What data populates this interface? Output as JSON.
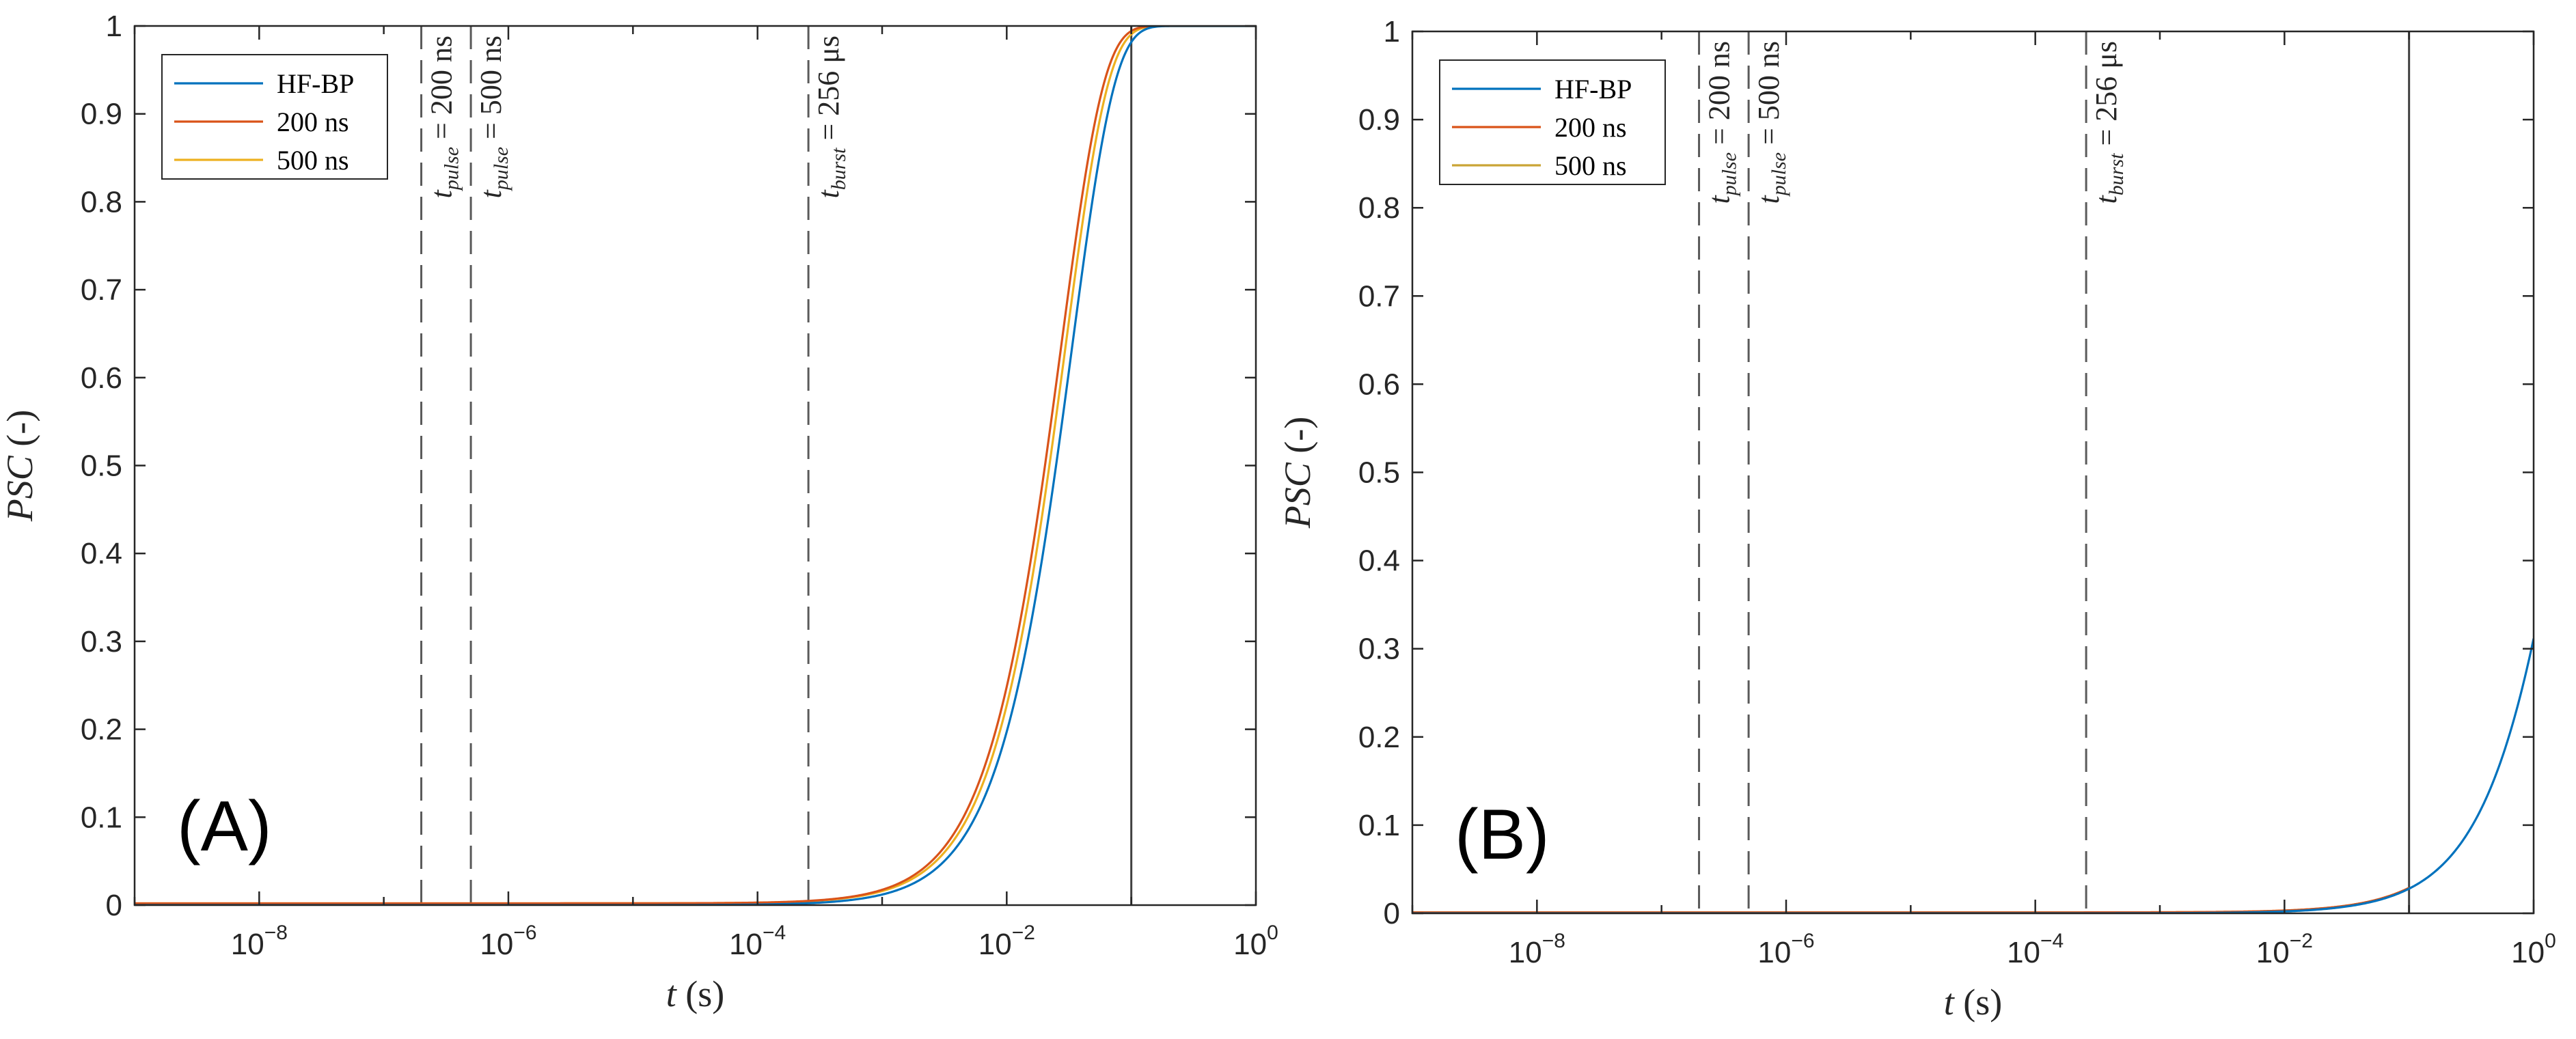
{
  "chart_data": [
    {
      "type": "line",
      "panel_label": "(A)",
      "xscale": "log",
      "xlim": [
        1e-09,
        1
      ],
      "ylim": [
        0,
        1
      ],
      "xlabel": {
        "symbol": "t",
        "unit": "(s)"
      },
      "ylabel": {
        "symbol": "PSC",
        "unit": "(-)"
      },
      "x_ticks": [
        {
          "value": 1e-08,
          "base": "10",
          "exp": "−8"
        },
        {
          "value": 1e-06,
          "base": "10",
          "exp": "−6"
        },
        {
          "value": 0.0001,
          "base": "10",
          "exp": "−4"
        },
        {
          "value": 0.01,
          "base": "10",
          "exp": "−2"
        },
        {
          "value": 1,
          "base": "10",
          "exp": "0"
        }
      ],
      "y_ticks": [
        {
          "value": 0,
          "label": "0"
        },
        {
          "value": 0.1,
          "label": "0.1"
        },
        {
          "value": 0.2,
          "label": "0.2"
        },
        {
          "value": 0.3,
          "label": "0.3"
        },
        {
          "value": 0.4,
          "label": "0.4"
        },
        {
          "value": 0.5,
          "label": "0.5"
        },
        {
          "value": 0.6,
          "label": "0.6"
        },
        {
          "value": 0.7,
          "label": "0.7"
        },
        {
          "value": 0.8,
          "label": "0.8"
        },
        {
          "value": 0.9,
          "label": "0.9"
        },
        {
          "value": 1,
          "label": "1"
        }
      ],
      "legend": {
        "location": "top-left",
        "entries": [
          "HF-BP",
          "200 ns",
          "500 ns"
        ]
      },
      "series": [
        {
          "name": "HF-BP",
          "color": "#0072BD",
          "model": "weibull",
          "tau": 0.0333,
          "k": 1.26,
          "baseline": 0
        },
        {
          "name": "200 ns",
          "color": "#D95319",
          "model": "weibull",
          "tau": 0.0272,
          "k": 1.26,
          "baseline": 0.002
        },
        {
          "name": "500 ns",
          "color": "#EDB120",
          "model": "weibull",
          "tau": 0.0295,
          "k": 1.26,
          "baseline": 0.002
        }
      ],
      "vlines": [
        {
          "x": 2e-07,
          "style": "dashed",
          "label": {
            "var": "t",
            "sub": "pulse",
            "text": " = 200 ns"
          }
        },
        {
          "x": 5e-07,
          "style": "dashed",
          "label": {
            "var": "t",
            "sub": "pulse",
            "text": " = 500 ns"
          }
        },
        {
          "x": 0.000256,
          "style": "dashed",
          "label": {
            "var": "t",
            "sub": "burst",
            "text": " = 256 μs"
          }
        },
        {
          "x": 0.1,
          "style": "solid"
        }
      ]
    },
    {
      "type": "line",
      "panel_label": "(B)",
      "xscale": "log",
      "xlim": [
        1e-09,
        1
      ],
      "ylim": [
        0,
        1
      ],
      "xlabel": {
        "symbol": "t",
        "unit": "(s)"
      },
      "ylabel": {
        "symbol": "PSC",
        "unit": "(-)"
      },
      "x_ticks": [
        {
          "value": 1e-08,
          "base": "10",
          "exp": "−8"
        },
        {
          "value": 1e-06,
          "base": "10",
          "exp": "−6"
        },
        {
          "value": 0.0001,
          "base": "10",
          "exp": "−4"
        },
        {
          "value": 0.01,
          "base": "10",
          "exp": "−2"
        },
        {
          "value": 1,
          "base": "10",
          "exp": "0"
        }
      ],
      "y_ticks": [
        {
          "value": 0,
          "label": "0"
        },
        {
          "value": 0.1,
          "label": "0.1"
        },
        {
          "value": 0.2,
          "label": "0.2"
        },
        {
          "value": 0.3,
          "label": "0.3"
        },
        {
          "value": 0.4,
          "label": "0.4"
        },
        {
          "value": 0.5,
          "label": "0.5"
        },
        {
          "value": 0.6,
          "label": "0.6"
        },
        {
          "value": 0.7,
          "label": "0.7"
        },
        {
          "value": 0.8,
          "label": "0.8"
        },
        {
          "value": 0.9,
          "label": "0.9"
        },
        {
          "value": 1,
          "label": "1"
        }
      ],
      "legend": {
        "location": "top-left",
        "entries": [
          "HF-BP",
          "200 ns",
          "500 ns"
        ]
      },
      "series": [
        {
          "name": "HF-BP",
          "color": "#0072BD",
          "model": "weibull",
          "tau": 2.41,
          "k": 1.12,
          "baseline": 0
        },
        {
          "name": "200 ns",
          "color": "#D95319",
          "model": "weibull",
          "tau": 2.41,
          "k": 1.12,
          "baseline": 0.001,
          "x_max": 0.1
        },
        {
          "name": "500 ns",
          "color": "#C9A536",
          "model": "weibull",
          "tau": 2.41,
          "k": 1.12,
          "baseline": 0.001,
          "x_max": 0.1
        }
      ],
      "vlines": [
        {
          "x": 2e-07,
          "style": "dashed",
          "label": {
            "var": "t",
            "sub": "pulse",
            "text": " = 200 ns"
          }
        },
        {
          "x": 5e-07,
          "style": "dashed",
          "label": {
            "var": "t",
            "sub": "pulse",
            "text": " = 500 ns"
          }
        },
        {
          "x": 0.000256,
          "style": "dashed",
          "label": {
            "var": "t",
            "sub": "burst",
            "text": " = 256 μs"
          }
        },
        {
          "x": 0.1,
          "style": "solid"
        }
      ]
    }
  ]
}
